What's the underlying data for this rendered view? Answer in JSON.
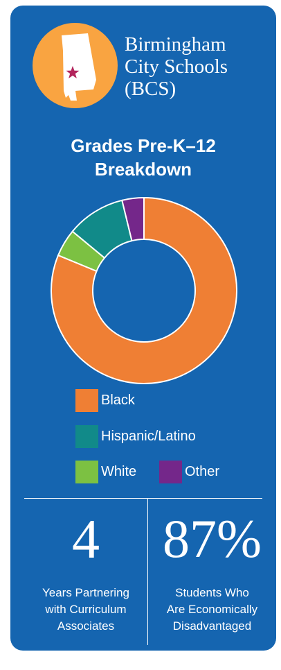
{
  "org": {
    "name_lines": [
      "Birmingham",
      "City Schools",
      "(BCS)"
    ]
  },
  "badge": {
    "icons": [
      "alabama-map-icon",
      "star-icon"
    ],
    "colors": {
      "circle": "#f9a441",
      "map": "#ffffff",
      "star": "#b3245c"
    }
  },
  "chart_data": {
    "type": "pie",
    "title_lines": [
      "Grades Pre-K–12",
      "Breakdown"
    ],
    "labels": [
      "Black",
      "White",
      "Hispanic/Latino",
      "Other"
    ],
    "values": [
      81.2,
      4.8,
      10.2,
      3.8
    ],
    "colors": [
      "#ef7f34",
      "#7cc142",
      "#118a89",
      "#74278a"
    ],
    "legend": [
      {
        "label": "Black",
        "color": "#ef7f34"
      },
      {
        "label": "Hispanic/Latino",
        "color": "#118a89"
      },
      {
        "label": "White",
        "color": "#7cc142"
      },
      {
        "label": "Other",
        "color": "#74278a"
      }
    ],
    "legend_position": "bottom"
  },
  "stats": [
    {
      "value": "4",
      "lines": [
        "Years Partnering",
        "with Curriculum",
        "Associates"
      ]
    },
    {
      "value": "87%",
      "lines": [
        "Students Who",
        "Are Economically",
        "Disadvantaged"
      ]
    }
  ]
}
